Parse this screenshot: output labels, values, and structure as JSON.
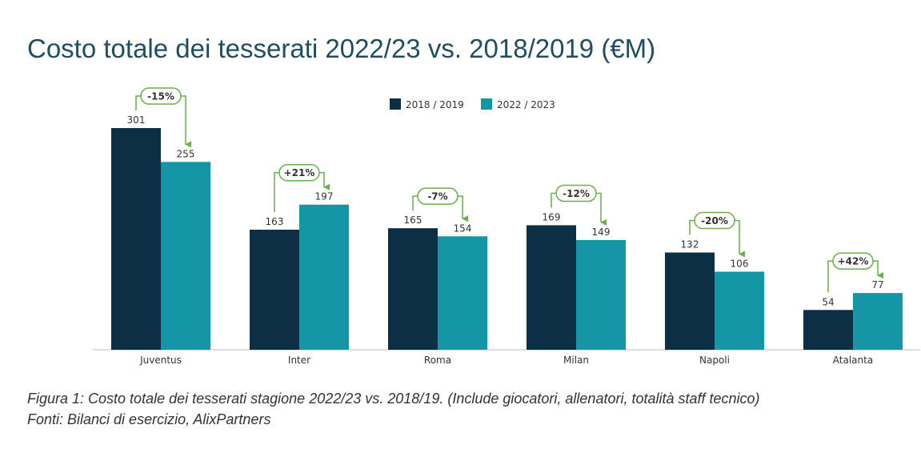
{
  "title": "Costo totale dei tesserati 2022/23 vs. 2018/2019 (€M)",
  "caption_line1": "Figura 1: Costo totale dei tesserati stagione 2022/23 vs. 2018/19. (Include giocatori, allenatori, totalità staff tecnico)",
  "caption_line2": "Fonti: Bilanci di esercizio, AlixPartners",
  "chart_data": {
    "type": "bar",
    "categories": [
      "Juventus",
      "Inter",
      "Roma",
      "Milan",
      "Napoli",
      "Atalanta"
    ],
    "series": [
      {
        "name": "2018 / 2019",
        "values": [
          301,
          163,
          165,
          169,
          132,
          54
        ],
        "color": "#0b2f44"
      },
      {
        "name": "2022 / 2023",
        "values": [
          255,
          197,
          154,
          149,
          106,
          77
        ],
        "color": "#1596a6"
      }
    ],
    "changes": [
      "-15%",
      "+21%",
      "-7%",
      "-12%",
      "-20%",
      "+42%"
    ],
    "annotation_color": "#6ab04c",
    "legend_position": "top-center",
    "grid": false,
    "ylim": [
      0,
      301
    ]
  }
}
